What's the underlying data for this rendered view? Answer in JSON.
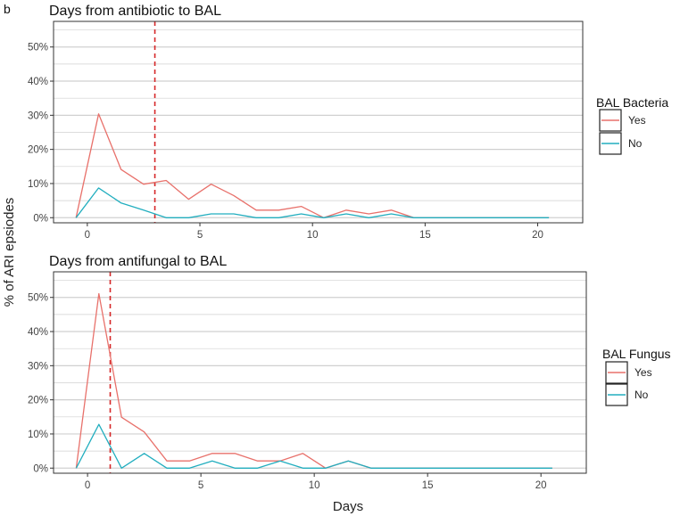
{
  "figure": {
    "panel_tag": "b",
    "shared_ylabel": "% of ARI epsiodes",
    "shared_xlabel": "Days"
  },
  "colors": {
    "yes": "#e8716b",
    "no": "#22aebf",
    "vline": "#d62728",
    "grid": "#d0d0d0",
    "panel_border": "#333333"
  },
  "chart_data": [
    {
      "type": "line",
      "title": "Days from antibiotic to BAL",
      "xlabel": "Days",
      "ylabel": "% of ARI epsiodes",
      "xlim": [
        -1.5,
        22
      ],
      "ylim": [
        -1.5,
        57.5
      ],
      "xticks": [
        0,
        5,
        10,
        15,
        20
      ],
      "xtick_labels": [
        "0",
        "5",
        "10",
        "15",
        "20"
      ],
      "yticks": [
        0,
        10,
        20,
        30,
        40,
        50
      ],
      "ytick_labels": [
        "0%",
        "10%",
        "20%",
        "30%",
        "40%",
        "50%"
      ],
      "grid": true,
      "vline": 3,
      "legend": {
        "title": "BAL Bacteria",
        "position": "right"
      },
      "x": [
        -0.5,
        0.5,
        1.5,
        2.5,
        3.5,
        4.5,
        5.5,
        6.5,
        7.5,
        8.5,
        9.5,
        10.5,
        11.5,
        12.5,
        13.5,
        14.5,
        15.5,
        16.5,
        17.5,
        18.5,
        19.5,
        20.5
      ],
      "series": [
        {
          "name": "Yes",
          "color_key": "yes",
          "values": [
            0,
            30.4,
            14.1,
            9.8,
            10.9,
            5.4,
            9.8,
            6.5,
            2.2,
            2.2,
            3.3,
            0,
            2.2,
            1.1,
            2.2,
            0,
            0,
            0,
            0,
            0,
            0,
            0
          ]
        },
        {
          "name": "No",
          "color_key": "no",
          "values": [
            0,
            8.7,
            4.3,
            2.2,
            0,
            0,
            1.1,
            1.1,
            0,
            0,
            1.1,
            0,
            1.1,
            0,
            1.1,
            0,
            0,
            0,
            0,
            0,
            0,
            0
          ]
        }
      ]
    },
    {
      "type": "line",
      "title": "Days from antifungal to BAL",
      "xlabel": "Days",
      "ylabel": "% of ARI epsiodes",
      "xlim": [
        -1.5,
        22
      ],
      "ylim": [
        -1.5,
        57.5
      ],
      "xticks": [
        0,
        5,
        10,
        15,
        20
      ],
      "xtick_labels": [
        "0",
        "5",
        "10",
        "15",
        "20"
      ],
      "yticks": [
        0,
        10,
        20,
        30,
        40,
        50
      ],
      "ytick_labels": [
        "0%",
        "10%",
        "20%",
        "30%",
        "40%",
        "50%"
      ],
      "grid": true,
      "vline": 1,
      "legend": {
        "title": "BAL Fungus",
        "position": "right"
      },
      "x": [
        -0.5,
        0.5,
        1.5,
        2.5,
        3.5,
        4.5,
        5.5,
        6.5,
        7.5,
        8.5,
        9.5,
        10.5,
        11.5,
        12.5,
        13.5,
        14.5,
        15.5,
        16.5,
        17.5,
        18.5,
        19.5,
        20.5
      ],
      "series": [
        {
          "name": "Yes",
          "color_key": "yes",
          "values": [
            0,
            51.1,
            14.9,
            10.6,
            2.1,
            2.1,
            4.3,
            4.3,
            2.1,
            2.1,
            4.3,
            0,
            2.1,
            0,
            0,
            0,
            0,
            0,
            0,
            0,
            0,
            0
          ]
        },
        {
          "name": "No",
          "color_key": "no",
          "values": [
            0,
            12.8,
            0,
            4.3,
            0,
            0,
            2.1,
            0,
            0,
            2.1,
            0,
            0,
            2.1,
            0,
            0,
            0,
            0,
            0,
            0,
            0,
            0,
            0
          ]
        }
      ]
    }
  ]
}
